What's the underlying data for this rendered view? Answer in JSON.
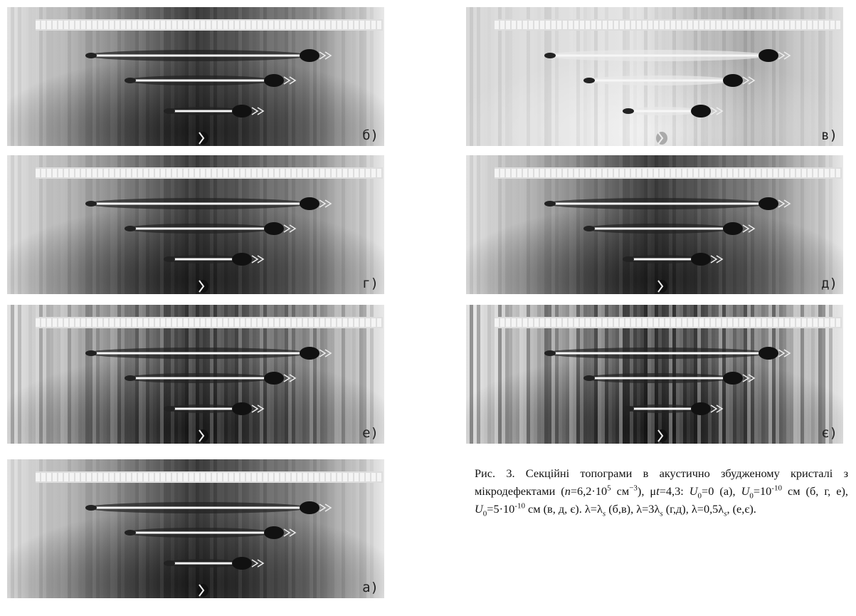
{
  "panels": [
    {
      "label": "б)"
    },
    {
      "label": "в)"
    },
    {
      "label": "г)"
    },
    {
      "label": "д)"
    },
    {
      "label": "е)"
    },
    {
      "label": "є)"
    },
    {
      "label": "а)"
    }
  ],
  "caption": {
    "parts": [
      "Рис. 3. Секційні топограми в акустично збудженому кристалі з мікродефектами (",
      "n",
      "=6,2·10",
      "5",
      " см",
      "−3",
      "), μ",
      "t",
      "=4,3: ",
      "U",
      "0",
      "=0 (а), ",
      "U",
      "0",
      "=10",
      "-10",
      " см (б, г, е), ",
      "U",
      "0",
      "=5·10",
      "-10",
      " см (в, д, є). λ=λ",
      "s",
      " (б,в), λ=3λ",
      "s",
      " (г,д), λ=0,5λ",
      "s",
      ", (е,є)."
    ]
  }
}
